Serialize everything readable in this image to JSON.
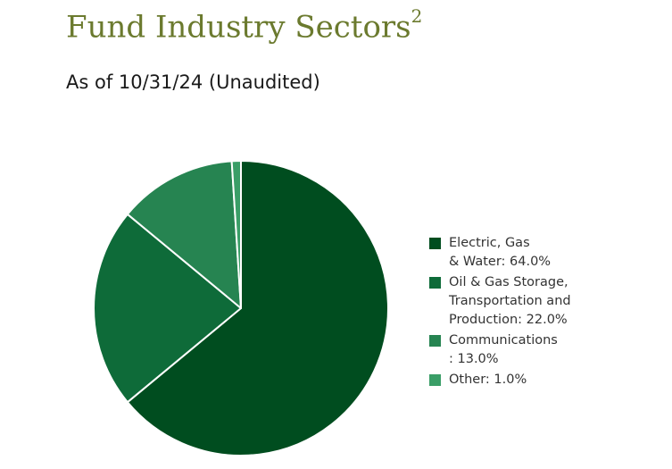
{
  "header": {
    "title": "Fund Industry Sectors",
    "title_superscript": "2",
    "subtitle": "As of 10/31/24 (Unaudited)"
  },
  "legend": {
    "items": [
      {
        "text": "Electric, Gas\n& Water: 64.0%",
        "color": "#004d1f"
      },
      {
        "text": "Oil & Gas Storage,\nTransportation and\nProduction: 22.0%",
        "color": "#0e6b39"
      },
      {
        "text": "Communications\n: 13.0%",
        "color": "#268451"
      },
      {
        "text": "Other: 1.0%",
        "color": "#3a9e67"
      }
    ]
  },
  "chart_data": {
    "type": "pie",
    "title": "Fund Industry Sectors",
    "subtitle": "As of 10/31/24 (Unaudited)",
    "slices": [
      {
        "label": "Electric, Gas & Water",
        "value": 64.0,
        "color": "#004d1f"
      },
      {
        "label": "Oil & Gas Storage, Transportation and Production",
        "value": 22.0,
        "color": "#0e6b39"
      },
      {
        "label": "Communications",
        "value": 13.0,
        "color": "#268451"
      },
      {
        "label": "Other",
        "value": 1.0,
        "color": "#3a9e67"
      }
    ],
    "legend_position": "right",
    "start_angle": "top, clockwise"
  }
}
